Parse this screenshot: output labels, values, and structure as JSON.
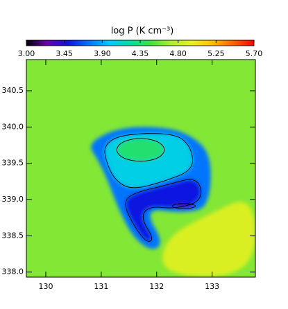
{
  "chart_data": {
    "type": "heatmap",
    "title": "log P (K cm⁻³)",
    "clim": [
      3.0,
      5.7
    ],
    "cticks": [
      {
        "value": 3.0,
        "label": "3.00"
      },
      3.45,
      {
        "value": 3.9,
        "label": "3.90"
      },
      4.35,
      {
        "value": 4.8,
        "label": "4.80"
      },
      5.25,
      {
        "value": 5.7,
        "label": "5.70"
      }
    ],
    "colormap": [
      "#000000",
      "#6a00a8",
      "#1010e0",
      "#0070ff",
      "#00c8ff",
      "#00e0a0",
      "#40e040",
      "#b0ec30",
      "#e8f020",
      "#ffc000",
      "#ff6000",
      "#ff0000"
    ],
    "xlim": [
      129.65,
      133.78
    ],
    "ylim": [
      337.93,
      340.93
    ],
    "xticks": [
      130,
      131,
      132,
      133
    ],
    "yticks": [
      340.5,
      {
        "value": 340.0,
        "label": "340.0"
      },
      339.5,
      {
        "value": 339.0,
        "label": "339.0"
      },
      338.5,
      {
        "value": 338.0,
        "label": "338.0"
      }
    ],
    "background": 4.62,
    "regions": [
      {
        "value": 4.9,
        "outlined": false,
        "x": [
          132.08,
          132.13,
          132.93,
          133.78,
          133.78
        ],
        "y": [
          337.94,
          338.46,
          338.8,
          339.08,
          337.94
        ]
      },
      {
        "value": 3.75,
        "outlined": false,
        "x": [
          130.78,
          130.93,
          131.24,
          131.68,
          132.3,
          132.68,
          132.93,
          132.99,
          132.93,
          132.8,
          132.36,
          131.93,
          131.86,
          132.08,
          132.03,
          131.83,
          131.55,
          131.3,
          131.11,
          130.93
        ],
        "y": [
          339.73,
          339.85,
          339.96,
          340.01,
          339.98,
          339.85,
          339.66,
          339.32,
          338.99,
          338.85,
          338.82,
          338.87,
          338.75,
          338.46,
          338.32,
          338.32,
          338.51,
          338.89,
          339.28,
          339.56
        ]
      },
      {
        "value": 4.05,
        "outlined": true,
        "x": [
          131.05,
          131.36,
          132.3,
          132.61,
          132.68,
          132.18,
          131.55,
          131.24,
          131.08
        ],
        "y": [
          339.75,
          339.9,
          339.92,
          339.75,
          339.42,
          339.26,
          339.13,
          339.27,
          339.54
        ]
      },
      {
        "value": 3.5,
        "outlined": true,
        "x": [
          131.53,
          132.18,
          132.74,
          132.84,
          132.36,
          131.86,
          131.71,
          131.95,
          131.83,
          131.61,
          131.4
        ],
        "y": [
          339.08,
          339.2,
          339.32,
          338.99,
          338.87,
          338.91,
          338.75,
          338.46,
          338.4,
          338.61,
          338.93
        ]
      },
      {
        "value": 4.35,
        "outlined": true,
        "x": [
          132.17,
          132.04,
          131.71,
          131.38,
          131.25,
          131.38,
          131.71,
          132.04
        ],
        "y": [
          339.685,
          339.805,
          339.855,
          339.805,
          339.685,
          339.565,
          339.515,
          339.565
        ]
      },
      {
        "value": 3.4,
        "outlined": true,
        "x": [
          132.77,
          132.49,
          132.21,
          132.49
        ],
        "y": [
          338.91,
          338.96,
          338.91,
          338.86
        ]
      }
    ]
  }
}
